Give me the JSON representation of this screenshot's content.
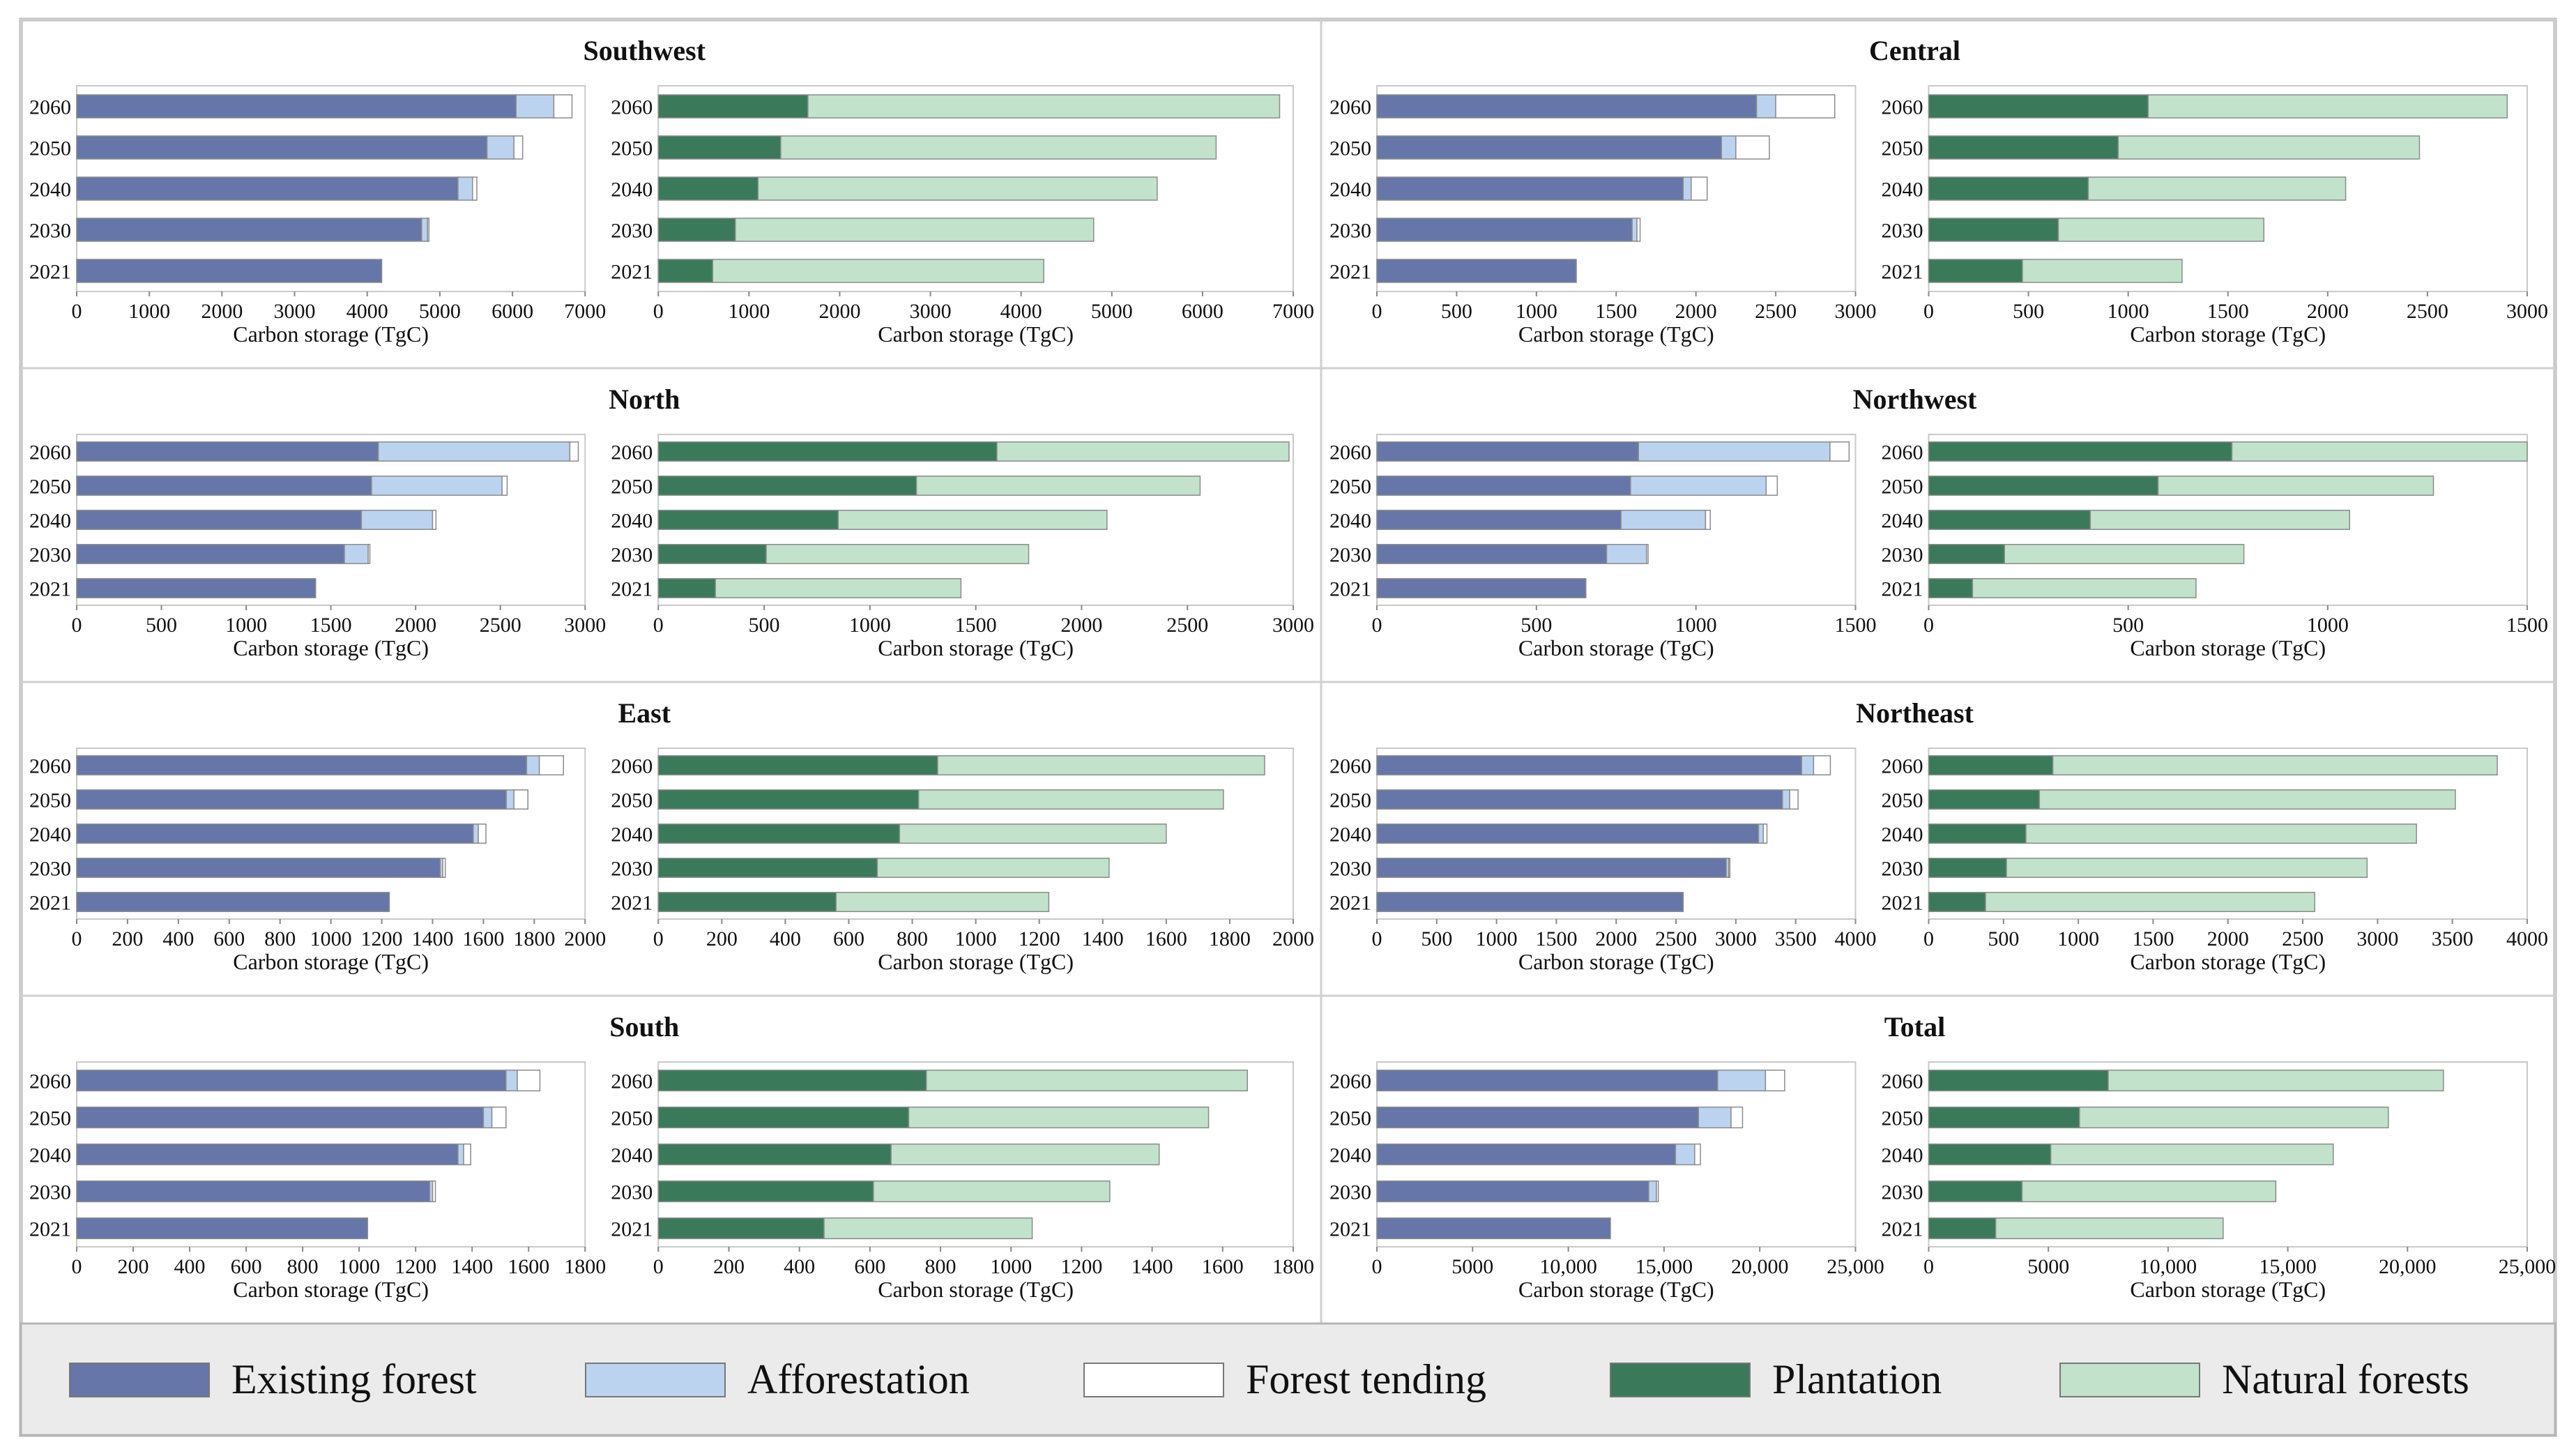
{
  "chart_data": [
    {
      "type": "bar",
      "orientation": "horizontal",
      "stacked": true,
      "title": "Southwest",
      "xlabel": "Carbon storage (TgC)",
      "categories": [
        "2060",
        "2050",
        "2040",
        "2030",
        "2021"
      ],
      "left": {
        "xlim": [
          0,
          7000
        ],
        "ticks": [
          "0",
          "1000",
          "2000",
          "3000",
          "4000",
          "5000",
          "6000",
          "7000"
        ],
        "series": [
          {
            "name": "Existing forest",
            "values": [
              6050,
              5650,
              5250,
              4750,
              4200
            ]
          },
          {
            "name": "Afforestation",
            "values": [
              520,
              370,
              200,
              80,
              0
            ]
          },
          {
            "name": "Forest tending",
            "values": [
              250,
              120,
              60,
              20,
              0
            ]
          }
        ]
      },
      "right": {
        "xlim": [
          0,
          7000
        ],
        "ticks": [
          "0",
          "1000",
          "2000",
          "3000",
          "4000",
          "5000",
          "6000",
          "7000"
        ],
        "series": [
          {
            "name": "Plantation",
            "values": [
              1650,
              1350,
              1100,
              850,
              600
            ]
          },
          {
            "name": "Natural forests",
            "values": [
              5200,
              4800,
              4400,
              3950,
              3650
            ]
          }
        ]
      }
    },
    {
      "type": "bar",
      "orientation": "horizontal",
      "stacked": true,
      "title": "Central",
      "xlabel": "Carbon storage (TgC)",
      "categories": [
        "2060",
        "2050",
        "2040",
        "2030",
        "2021"
      ],
      "left": {
        "xlim": [
          0,
          3000
        ],
        "ticks": [
          "0",
          "500",
          "1000",
          "1500",
          "2000",
          "2500",
          "3000"
        ],
        "series": [
          {
            "name": "Existing forest",
            "values": [
              2380,
              2160,
              1920,
              1600,
              1250
            ]
          },
          {
            "name": "Afforestation",
            "values": [
              120,
              90,
              50,
              30,
              0
            ]
          },
          {
            "name": "Forest tending",
            "values": [
              370,
              210,
              100,
              20,
              0
            ]
          }
        ]
      },
      "right": {
        "xlim": [
          0,
          3000
        ],
        "ticks": [
          "0",
          "500",
          "1000",
          "1500",
          "2000",
          "2500",
          "3000"
        ],
        "series": [
          {
            "name": "Plantation",
            "values": [
              1100,
              950,
              800,
              650,
              470
            ]
          },
          {
            "name": "Natural forests",
            "values": [
              1800,
              1510,
              1290,
              1030,
              800
            ]
          }
        ]
      }
    },
    {
      "type": "bar",
      "orientation": "horizontal",
      "stacked": true,
      "title": "North",
      "xlabel": "Carbon storage (TgC)",
      "categories": [
        "2060",
        "2050",
        "2040",
        "2030",
        "2021"
      ],
      "left": {
        "xlim": [
          0,
          3000
        ],
        "ticks": [
          "0",
          "500",
          "1000",
          "1500",
          "2000",
          "2500",
          "3000"
        ],
        "series": [
          {
            "name": "Existing forest",
            "values": [
              1780,
              1740,
              1680,
              1580,
              1410
            ]
          },
          {
            "name": "Afforestation",
            "values": [
              1130,
              770,
              420,
              140,
              0
            ]
          },
          {
            "name": "Forest tending",
            "values": [
              50,
              30,
              20,
              10,
              0
            ]
          }
        ]
      },
      "right": {
        "xlim": [
          0,
          3000
        ],
        "ticks": [
          "0",
          "500",
          "1000",
          "1500",
          "2000",
          "2500",
          "3000"
        ],
        "series": [
          {
            "name": "Plantation",
            "values": [
              1600,
              1220,
              850,
              510,
              270
            ]
          },
          {
            "name": "Natural forests",
            "values": [
              1380,
              1340,
              1270,
              1240,
              1160
            ]
          }
        ]
      }
    },
    {
      "type": "bar",
      "orientation": "horizontal",
      "stacked": true,
      "title": "Northwest",
      "xlabel": "Carbon storage (TgC)",
      "categories": [
        "2060",
        "2050",
        "2040",
        "2030",
        "2021"
      ],
      "left": {
        "xlim": [
          0,
          1500
        ],
        "ticks": [
          "0",
          "500",
          "1000",
          "1500"
        ],
        "series": [
          {
            "name": "Existing forest",
            "values": [
              820,
              795,
              765,
              720,
              655
            ]
          },
          {
            "name": "Afforestation",
            "values": [
              600,
              425,
              265,
              125,
              0
            ]
          },
          {
            "name": "Forest tending",
            "values": [
              60,
              35,
              15,
              5,
              0
            ]
          }
        ]
      },
      "right": {
        "xlim": [
          0,
          1500
        ],
        "ticks": [
          "0",
          "500",
          "1000",
          "1500"
        ],
        "series": [
          {
            "name": "Plantation",
            "values": [
              760,
              575,
              405,
              190,
              110
            ]
          },
          {
            "name": "Natural forests",
            "values": [
              740,
              690,
              650,
              600,
              560
            ]
          }
        ]
      }
    },
    {
      "type": "bar",
      "orientation": "horizontal",
      "stacked": true,
      "title": "East",
      "xlabel": "Carbon storage (TgC)",
      "categories": [
        "2060",
        "2050",
        "2040",
        "2030",
        "2021"
      ],
      "left": {
        "xlim": [
          0,
          2000
        ],
        "ticks": [
          "0",
          "200",
          "400",
          "600",
          "800",
          "1000",
          "1200",
          "1400",
          "1600",
          "1800",
          "2000"
        ],
        "series": [
          {
            "name": "Existing forest",
            "values": [
              1770,
              1690,
              1560,
              1430,
              1230
            ]
          },
          {
            "name": "Afforestation",
            "values": [
              50,
              30,
              20,
              10,
              0
            ]
          },
          {
            "name": "Forest tending",
            "values": [
              95,
              55,
              30,
              10,
              0
            ]
          }
        ]
      },
      "right": {
        "xlim": [
          0,
          2000
        ],
        "ticks": [
          "0",
          "200",
          "400",
          "600",
          "800",
          "1000",
          "1200",
          "1400",
          "1600",
          "1800",
          "2000"
        ],
        "series": [
          {
            "name": "Plantation",
            "values": [
              880,
              820,
              760,
              690,
              560
            ]
          },
          {
            "name": "Natural forests",
            "values": [
              1030,
              960,
              840,
              730,
              670
            ]
          }
        ]
      }
    },
    {
      "type": "bar",
      "orientation": "horizontal",
      "stacked": true,
      "title": "Northeast",
      "xlabel": "Carbon storage (TgC)",
      "categories": [
        "2060",
        "2050",
        "2040",
        "2030",
        "2021"
      ],
      "left": {
        "xlim": [
          0,
          4000
        ],
        "ticks": [
          "0",
          "500",
          "1000",
          "1500",
          "2000",
          "2500",
          "3000",
          "3500",
          "4000"
        ],
        "series": [
          {
            "name": "Existing forest",
            "values": [
              3550,
              3390,
              3190,
              2920,
              2560
            ]
          },
          {
            "name": "Afforestation",
            "values": [
              100,
              60,
              40,
              20,
              0
            ]
          },
          {
            "name": "Forest tending",
            "values": [
              140,
              70,
              30,
              10,
              0
            ]
          }
        ]
      },
      "right": {
        "xlim": [
          0,
          4000
        ],
        "ticks": [
          "0",
          "500",
          "1000",
          "1500",
          "2000",
          "2500",
          "3000",
          "3500",
          "4000"
        ],
        "series": [
          {
            "name": "Plantation",
            "values": [
              830,
              740,
              650,
              520,
              380
            ]
          },
          {
            "name": "Natural forests",
            "values": [
              2970,
              2780,
              2610,
              2410,
              2200
            ]
          }
        ]
      }
    },
    {
      "type": "bar",
      "orientation": "horizontal",
      "stacked": true,
      "title": "South",
      "xlabel": "Carbon storage (TgC)",
      "categories": [
        "2060",
        "2050",
        "2040",
        "2030",
        "2021"
      ],
      "left": {
        "xlim": [
          0,
          1800
        ],
        "ticks": [
          "0",
          "200",
          "400",
          "600",
          "800",
          "1000",
          "1200",
          "1400",
          "1600",
          "1800"
        ],
        "series": [
          {
            "name": "Existing forest",
            "values": [
              1520,
              1440,
              1350,
              1250,
              1030
            ]
          },
          {
            "name": "Afforestation",
            "values": [
              40,
              30,
              20,
              10,
              0
            ]
          },
          {
            "name": "Forest tending",
            "values": [
              80,
              50,
              25,
              10,
              0
            ]
          }
        ]
      },
      "right": {
        "xlim": [
          0,
          1800
        ],
        "ticks": [
          "0",
          "200",
          "400",
          "600",
          "800",
          "1000",
          "1200",
          "1400",
          "1600",
          "1800"
        ],
        "series": [
          {
            "name": "Plantation",
            "values": [
              760,
              710,
              660,
              610,
              470
            ]
          },
          {
            "name": "Natural forests",
            "values": [
              910,
              850,
              760,
              670,
              590
            ]
          }
        ]
      }
    },
    {
      "type": "bar",
      "orientation": "horizontal",
      "stacked": true,
      "title": "Total",
      "xlabel": "Carbon storage (TgC)",
      "categories": [
        "2060",
        "2050",
        "2040",
        "2030",
        "2021"
      ],
      "left": {
        "xlim": [
          0,
          25000
        ],
        "ticks": [
          "0",
          "5000",
          "10,000",
          "15,000",
          "20,000",
          "25,000"
        ],
        "series": [
          {
            "name": "Existing forest",
            "values": [
              17800,
              16800,
              15600,
              14200,
              12200
            ]
          },
          {
            "name": "Afforestation",
            "values": [
              2500,
              1700,
              1000,
              400,
              0
            ]
          },
          {
            "name": "Forest tending",
            "values": [
              1000,
              600,
              300,
              100,
              0
            ]
          }
        ]
      },
      "right": {
        "xlim": [
          0,
          25000
        ],
        "ticks": [
          "0",
          "5000",
          "10,000",
          "15,000",
          "20,000",
          "25,000"
        ],
        "series": [
          {
            "name": "Plantation",
            "values": [
              7500,
              6300,
              5100,
              3900,
              2800
            ]
          },
          {
            "name": "Natural forests",
            "values": [
              14000,
              12900,
              11800,
              10600,
              9500
            ]
          }
        ]
      }
    }
  ],
  "legend": [
    {
      "name": "Existing forest",
      "color": "#6676a8"
    },
    {
      "name": "Afforestation",
      "color": "#bcd3f0"
    },
    {
      "name": "Forest tending",
      "color": "#ffffff"
    },
    {
      "name": "Plantation",
      "color": "#3a7a5a"
    },
    {
      "name": "Natural forests",
      "color": "#c2e2cb"
    }
  ]
}
